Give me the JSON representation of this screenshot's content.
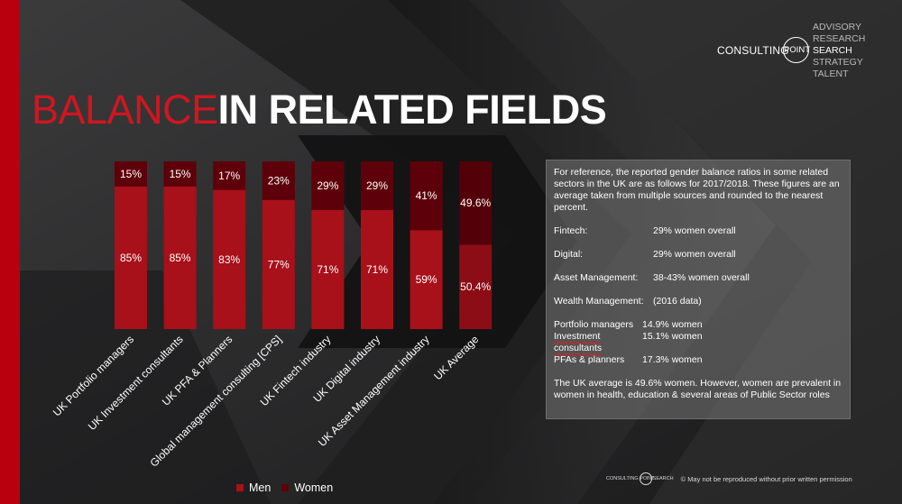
{
  "logo": {
    "name_left": "CONSULTING",
    "name_circle": "POINT",
    "services": [
      "ADVISORY",
      "RESEARCH",
      "SEARCH",
      "STRATEGY",
      "TALENT"
    ],
    "highlighted_service": "SEARCH"
  },
  "title": {
    "part1": "BALANCE",
    "part2": "IN RELATED FIELDS"
  },
  "chart_data": {
    "type": "bar",
    "stacked": true,
    "normalized": true,
    "categories": [
      "UK Portfolio managers",
      "UK Investment consultants",
      "UK PFA & Planners",
      "Global management consulting [CPS]",
      "UK Fintech industry",
      "UK Digital industry",
      "UK Asset Management industry",
      "UK Average"
    ],
    "series": [
      {
        "name": "Men",
        "values": [
          85,
          85,
          83,
          77,
          71,
          71,
          59,
          50.4
        ],
        "labels": [
          "85%",
          "85%",
          "83%",
          "77%",
          "71%",
          "71%",
          "59%",
          "50.4%"
        ]
      },
      {
        "name": "Women",
        "values": [
          15,
          15,
          17,
          23,
          29,
          29,
          41,
          49.6
        ],
        "labels": [
          "15%",
          "15%",
          "17%",
          "23%",
          "29%",
          "29%",
          "41%",
          "49.6%"
        ]
      }
    ],
    "ylim": [
      0,
      100
    ],
    "legend": "bottom",
    "colors": {
      "men": "#a8101a",
      "women": "#5e0009",
      "men_avg": "#8c0d16",
      "women_avg": "#540008"
    }
  },
  "info": {
    "intro": "For reference, the reported gender balance ratios in some related sectors in the UK are as follows for 2017/2018. These figures are an average taken from multiple sources and rounded to the nearest percent.",
    "sectors": [
      {
        "label": "Fintech:",
        "value": "29% women overall"
      },
      {
        "label": "Digital:",
        "value": "29% women overall"
      },
      {
        "label": "Asset Management:",
        "value": "38-43% women overall"
      },
      {
        "label": "Wealth Management:",
        "value": "(2016 data)"
      }
    ],
    "wealth_rows": [
      {
        "label": "Portfolio managers",
        "value": "14.9% women"
      },
      {
        "label": "Investment consultants",
        "value": "15.1% women"
      },
      {
        "label": "PFAs & planners",
        "value": "17.3% women"
      }
    ],
    "outro": "The UK average is 49.6% women. However, women are prevalent in women in health, education & several areas of Public Sector roles"
  },
  "legend": {
    "men": "Men",
    "women": "Women"
  },
  "footer": {
    "mini_left": "CONSULTING",
    "mini_circle": "POINT",
    "mini_right": "SEARCH",
    "notice": "© May not be reproduced without prior written permission"
  }
}
